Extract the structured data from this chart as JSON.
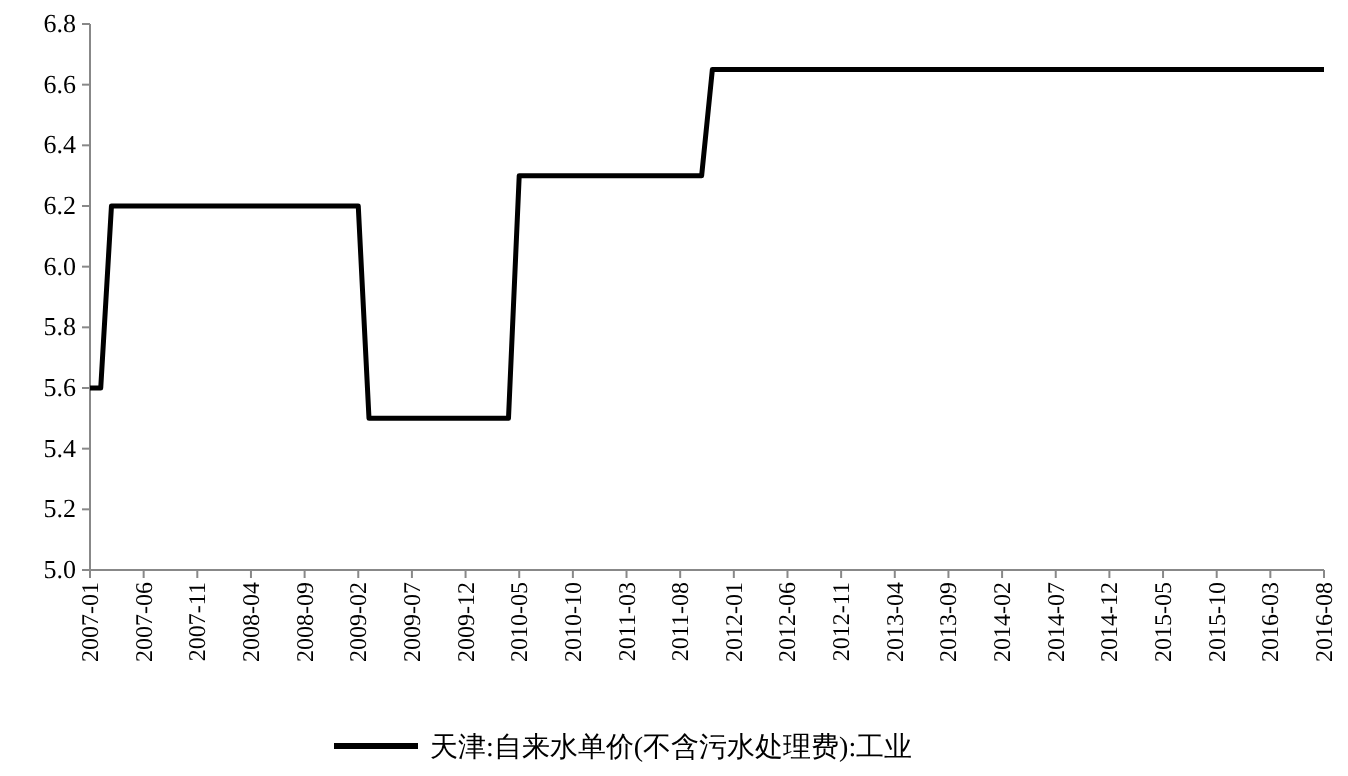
{
  "chart_data": {
    "type": "line",
    "x": [
      "2007-01",
      "2007-02",
      "2007-03",
      "2009-02",
      "2009-03",
      "2010-04",
      "2010-05",
      "2011-10",
      "2011-11",
      "2016-08"
    ],
    "series": [
      {
        "name": "天津:自来水单价(不含污水处理费):工业",
        "color": "#000000",
        "values": [
          5.6,
          5.6,
          6.2,
          6.2,
          5.5,
          5.5,
          6.3,
          6.3,
          6.65,
          6.65
        ]
      }
    ],
    "xlim": [
      "2007-01",
      "2016-08"
    ],
    "xticks": [
      "2007-01",
      "2007-06",
      "2007-11",
      "2008-04",
      "2008-09",
      "2009-02",
      "2009-07",
      "2009-12",
      "2010-05",
      "2010-10",
      "2011-03",
      "2011-08",
      "2012-01",
      "2012-06",
      "2012-11",
      "2013-04",
      "2013-09",
      "2014-02",
      "2014-07",
      "2014-12",
      "2015-05",
      "2015-10",
      "2016-03",
      "2016-08"
    ],
    "ylim": [
      5.0,
      6.8
    ],
    "yticks": [
      {
        "value": 5.0,
        "label": "5.0"
      },
      5.2,
      5.4,
      5.6,
      5.8,
      {
        "value": 6.0,
        "label": "6.0"
      },
      6.2,
      6.4,
      6.6,
      6.8
    ],
    "legend": "bottom"
  }
}
